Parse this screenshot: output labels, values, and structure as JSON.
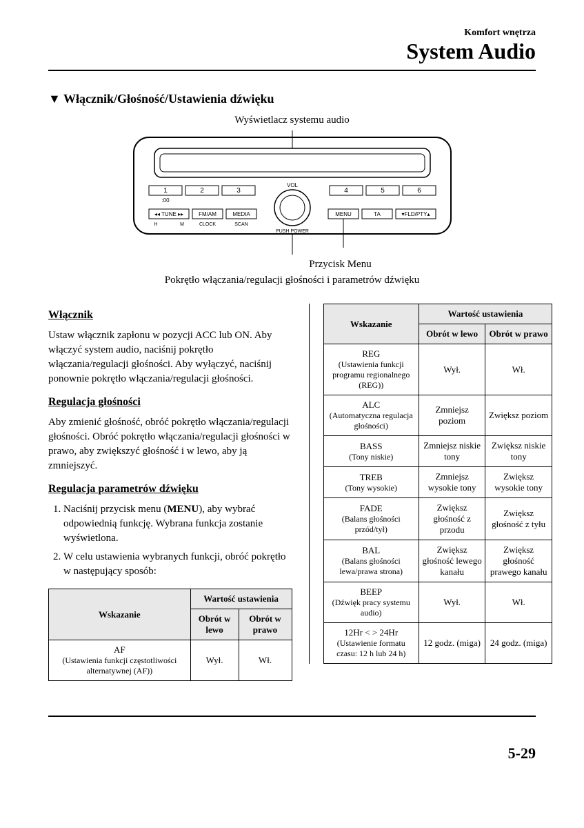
{
  "header": {
    "sub": "Komfort wnętrza",
    "main": "System Audio"
  },
  "section_title": "Włącznik/Głośność/Ustawienia dźwięku",
  "diagram": {
    "label_top": "Wyświetlacz systemu audio",
    "label_mid": "Przycisk Menu",
    "label_bottom": "Pokrętło włączania/regulacji głośności i parametrów dźwięku",
    "presets": [
      "1",
      "2",
      "3",
      "4",
      "5",
      "6"
    ],
    "sublabels": {
      "preset1": ":00"
    },
    "vol_label": "VOL",
    "push_label": "PUSH POWER",
    "btn_tune": "TUNE",
    "btn_fm": "FM/AM",
    "btn_media": "MEDIA",
    "btn_menu": "MENU",
    "btn_ta": "TA",
    "btn_fld": "FLD/PTY",
    "sub_h": "H",
    "sub_m": "M",
    "sub_clock": "CLOCK",
    "sub_scan": "SCAN"
  },
  "left": {
    "h1": "Włącznik",
    "p1": "Ustaw włącznik zapłonu w pozycji ACC lub ON. Aby włączyć system audio, naciśnij pokrętło włączania/regulacji głośności. Aby wyłączyć, naciśnij ponownie pokrętło włączania/regulacji głośności.",
    "h2": "Regulacja głośności",
    "p2": "Aby zmienić głośność, obróć pokrętło włączania/regulacji głośności. Obróć pokrętło włączania/regulacji głośności w prawo, aby zwiększyć głośność i w lewo, aby ją zmniejszyć.",
    "h3": "Regulacja parametrów dźwięku",
    "li1_a": "Naciśnij przycisk menu (",
    "li1_b": "MENU",
    "li1_c": "), aby wybrać odpowiednią funkcję. Wybrana funkcja zostanie wyświetlona.",
    "li2": "W celu ustawienia wybranych funkcji, obróć pokrętło w następujący sposób:"
  },
  "table_headers": {
    "wskazanie": "Wskazanie",
    "wartosc": "Wartość ustawienia",
    "lewo": "Obrót w lewo",
    "prawo": "Obrót w prawo"
  },
  "table1": {
    "rows": [
      {
        "name": "AF",
        "desc": "(Ustawienia funkcji częstotliwości alternatywnej (AF))",
        "left": "Wył.",
        "right": "Wł."
      }
    ]
  },
  "table2": {
    "rows": [
      {
        "name": "REG",
        "desc": "(Ustawienia funkcji programu regionalnego (REG))",
        "left": "Wył.",
        "right": "Wł."
      },
      {
        "name": "ALC",
        "desc": "(Automatyczna regulacja głośności)",
        "left": "Zmniejsz poziom",
        "right": "Zwiększ poziom"
      },
      {
        "name": "BASS",
        "desc": "(Tony niskie)",
        "left": "Zmniejsz niskie tony",
        "right": "Zwiększ niskie tony"
      },
      {
        "name": "TREB",
        "desc": "(Tony wysokie)",
        "left": "Zmniejsz wysokie tony",
        "right": "Zwiększ wysokie tony"
      },
      {
        "name": "FADE",
        "desc": "(Balans głośności przód/tył)",
        "left": "Zwiększ głośność z przodu",
        "right": "Zwiększ głośność z tyłu"
      },
      {
        "name": "BAL",
        "desc": "(Balans głośności lewa/prawa strona)",
        "left": "Zwiększ głośność lewego kanału",
        "right": "Zwiększ głośność prawego kanału"
      },
      {
        "name": "BEEP",
        "desc": "(Dźwięk pracy systemu audio)",
        "left": "Wył.",
        "right": "Wł."
      },
      {
        "name": "12Hr < > 24Hr",
        "desc": "(Ustawienie formatu czasu: 12 h lub 24 h)",
        "left": "12 godz. (miga)",
        "right": "24 godz. (miga)"
      }
    ]
  },
  "page_number": "5-29",
  "colors": {
    "text": "#000000",
    "bg": "#ffffff",
    "th_bg": "#e8e8e8",
    "border": "#000000"
  },
  "fonts": {
    "family": "Times New Roman, serif",
    "header_main_pt": 32,
    "header_sub_pt": 14,
    "section_pt": 18,
    "subhead_pt": 16,
    "body_pt": 15,
    "table_pt": 13,
    "page_num_pt": 22
  }
}
